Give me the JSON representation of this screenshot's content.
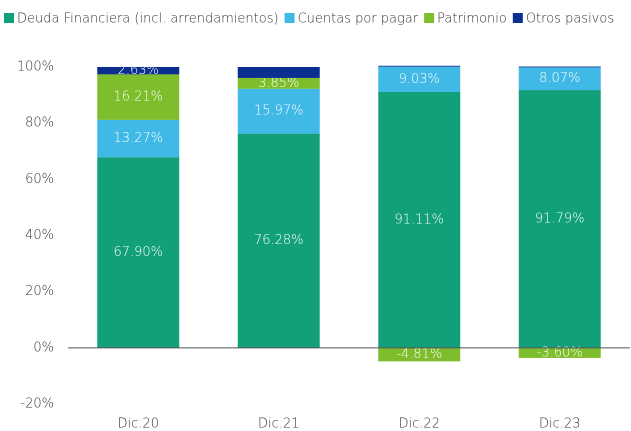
{
  "chart_data": {
    "type": "stacked_bar",
    "categories": [
      "Dic.20",
      "Dic.21",
      "Dic.22",
      "Dic.23"
    ],
    "series": [
      {
        "name": "Deuda Financiera (incl. arrendamientos)",
        "color": "#12a07a",
        "values": [
          67.9,
          76.28,
          91.11,
          91.79
        ],
        "value_labels": [
          "67.90%",
          "76.28%",
          "91.11%",
          "91.79%"
        ]
      },
      {
        "name": "Cuentas por pagar",
        "color": "#41b9e6",
        "values": [
          13.27,
          15.97,
          9.03,
          8.07
        ],
        "value_labels": [
          "13.27%",
          "15.97%",
          "9.03%",
          "8.07%"
        ]
      },
      {
        "name": "Patrimonio",
        "color": "#7ebd2c",
        "values": [
          16.21,
          3.85,
          -4.81,
          -3.6
        ],
        "value_labels": [
          "16.21%",
          "3.85%",
          "-4.81%",
          "-3.60%"
        ]
      },
      {
        "name": "Otros pasivos",
        "color": "#0a2f8f",
        "values": [
          2.63,
          3.9,
          0.3,
          0.3
        ],
        "value_labels": [
          "2.63%",
          null,
          null,
          null
        ]
      }
    ],
    "ylim": [
      -20,
      100
    ],
    "yticks": [
      {
        "value": -20,
        "label": "-20%"
      },
      {
        "value": 0,
        "label": "0%"
      },
      {
        "value": 20,
        "label": "20%"
      },
      {
        "value": 40,
        "label": "40%"
      },
      {
        "value": 60,
        "label": "60%"
      },
      {
        "value": 80,
        "label": "80%"
      },
      {
        "value": 100,
        "label": "100%"
      }
    ],
    "legend": "top-left",
    "grid": false
  }
}
